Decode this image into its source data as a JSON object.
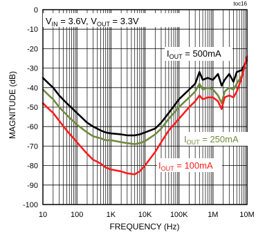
{
  "chart_data": {
    "type": "line",
    "figure_id": "toc16",
    "xlabel": "FREQUENCY (Hz)",
    "ylabel": "MAGNITUDE (dB)",
    "x_scale": "log",
    "xlim": [
      10,
      10000000
    ],
    "ylim": [
      -100,
      0
    ],
    "x_ticks": [
      {
        "value": 10,
        "label": "10"
      },
      {
        "value": 100,
        "label": "100"
      },
      {
        "value": 1000,
        "label": "1K"
      },
      {
        "value": 10000,
        "label": "10K"
      },
      {
        "value": 100000,
        "label": "100K"
      },
      {
        "value": 1000000,
        "label": "1M"
      },
      {
        "value": 10000000,
        "label": "10M"
      }
    ],
    "y_ticks": [
      0,
      -10,
      -20,
      -30,
      -40,
      -50,
      -60,
      -70,
      -80,
      -90,
      -100
    ],
    "grid": true,
    "conditions": {
      "vin_label": "V",
      "vin_sub": "IN",
      "vin_value": " = 3.6V, ",
      "vout_label": "V",
      "vout_sub": "OUT",
      "vout_value": " = 3.3V"
    },
    "series": [
      {
        "name_main": "I",
        "name_sub": "OUT",
        "name_value": " = 500mA",
        "color": "#000000",
        "points": [
          [
            10,
            -35
          ],
          [
            15,
            -38
          ],
          [
            20,
            -40
          ],
          [
            30,
            -44
          ],
          [
            50,
            -48
          ],
          [
            100,
            -53
          ],
          [
            200,
            -58
          ],
          [
            300,
            -60
          ],
          [
            500,
            -62
          ],
          [
            700,
            -63
          ],
          [
            1000,
            -63.5
          ],
          [
            2000,
            -64
          ],
          [
            3000,
            -64.5
          ],
          [
            5000,
            -64.5
          ],
          [
            7000,
            -64
          ],
          [
            10000,
            -63
          ],
          [
            20000,
            -61
          ],
          [
            30000,
            -58
          ],
          [
            50000,
            -53
          ],
          [
            100000,
            -46
          ],
          [
            200000,
            -41
          ],
          [
            300000,
            -38
          ],
          [
            400000,
            -32
          ],
          [
            500000,
            -36
          ],
          [
            700000,
            -35
          ],
          [
            1000000,
            -36
          ],
          [
            1400000,
            -33
          ],
          [
            1800000,
            -39
          ],
          [
            2200000,
            -36
          ],
          [
            3000000,
            -33
          ],
          [
            4000000,
            -37
          ],
          [
            5000000,
            -32
          ],
          [
            7000000,
            -31
          ],
          [
            10000000,
            -26
          ]
        ]
      },
      {
        "name_main": "I",
        "name_sub": "OUT",
        "name_value": " = 250mA",
        "color": "#6f8a3c",
        "points": [
          [
            10,
            -41
          ],
          [
            15,
            -44
          ],
          [
            20,
            -46
          ],
          [
            30,
            -50
          ],
          [
            50,
            -54
          ],
          [
            100,
            -59
          ],
          [
            200,
            -63
          ],
          [
            300,
            -65
          ],
          [
            500,
            -66
          ],
          [
            700,
            -67
          ],
          [
            1000,
            -67
          ],
          [
            2000,
            -68
          ],
          [
            3000,
            -68.5
          ],
          [
            5000,
            -69
          ],
          [
            7000,
            -68.5
          ],
          [
            10000,
            -67.5
          ],
          [
            20000,
            -64
          ],
          [
            30000,
            -61
          ],
          [
            50000,
            -56
          ],
          [
            100000,
            -50
          ],
          [
            200000,
            -45
          ],
          [
            300000,
            -42
          ],
          [
            400000,
            -38
          ],
          [
            500000,
            -41
          ],
          [
            700000,
            -40
          ],
          [
            1000000,
            -41
          ],
          [
            1400000,
            -44
          ],
          [
            1800000,
            -48
          ],
          [
            2200000,
            -42
          ],
          [
            3000000,
            -40
          ],
          [
            4000000,
            -41
          ],
          [
            5000000,
            -38
          ],
          [
            7000000,
            -34
          ],
          [
            10000000,
            -25
          ]
        ]
      },
      {
        "name_main": "I",
        "name_sub": "OUT",
        "name_value": " = 100mA",
        "color": "#ff1a1a",
        "points": [
          [
            10,
            -48
          ],
          [
            15,
            -51
          ],
          [
            20,
            -53
          ],
          [
            30,
            -57
          ],
          [
            50,
            -62
          ],
          [
            100,
            -68
          ],
          [
            200,
            -74
          ],
          [
            300,
            -77
          ],
          [
            500,
            -79
          ],
          [
            700,
            -81
          ],
          [
            1000,
            -82
          ],
          [
            2000,
            -83
          ],
          [
            3000,
            -84
          ],
          [
            5000,
            -84.5
          ],
          [
            7000,
            -83
          ],
          [
            10000,
            -80
          ],
          [
            20000,
            -73
          ],
          [
            30000,
            -68
          ],
          [
            50000,
            -62
          ],
          [
            100000,
            -56
          ],
          [
            200000,
            -50
          ],
          [
            300000,
            -47
          ],
          [
            400000,
            -44
          ],
          [
            500000,
            -46
          ],
          [
            700000,
            -45
          ],
          [
            1000000,
            -45
          ],
          [
            1400000,
            -47
          ],
          [
            1800000,
            -51
          ],
          [
            2200000,
            -45
          ],
          [
            3000000,
            -44
          ],
          [
            4000000,
            -45
          ],
          [
            5000000,
            -42
          ],
          [
            7000000,
            -35
          ],
          [
            10000000,
            -24
          ]
        ]
      }
    ]
  }
}
